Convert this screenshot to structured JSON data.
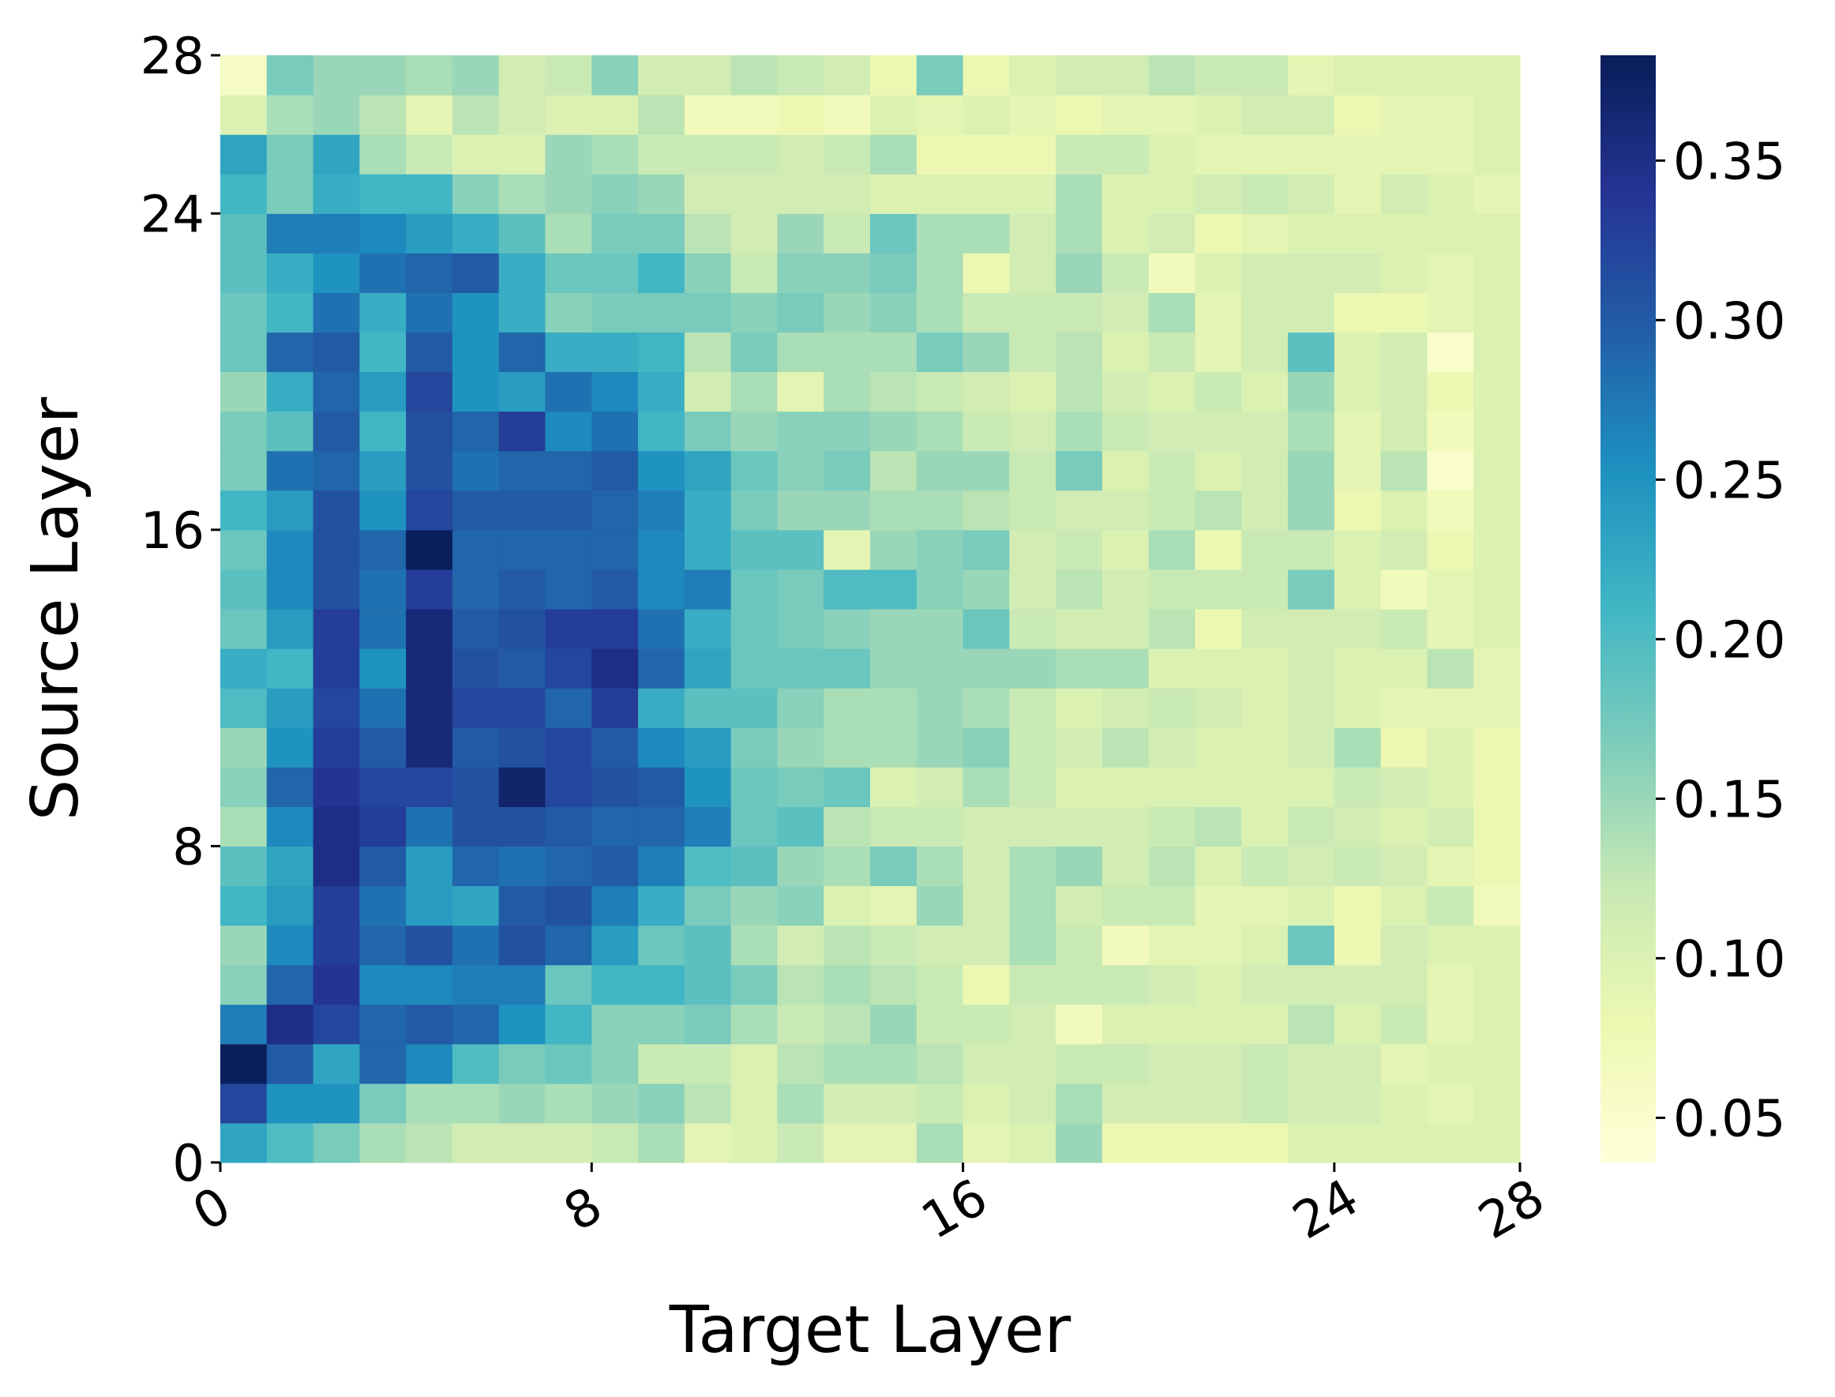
{
  "chart_data": {
    "type": "heatmap",
    "x_label": "Target Layer",
    "y_label": "Source Layer",
    "xlim": [
      0,
      28
    ],
    "xticks": [
      0,
      8,
      16,
      24,
      28
    ],
    "ylim": [
      0,
      28
    ],
    "yticks": [
      0,
      8,
      16,
      24,
      28
    ],
    "zlim": [
      0.036,
      0.383
    ],
    "zticks": [
      0.05,
      {
        "value": 0.1,
        "label": "0.10"
      },
      0.15,
      {
        "value": 0.2,
        "label": "0.20"
      },
      0.25,
      {
        "value": 0.3,
        "label": "0.30"
      },
      0.35
    ],
    "colormap": [
      "#ffffd9",
      "#edf8b1",
      "#c7e9b4",
      "#7fcdbb",
      "#41b6c4",
      "#1d91c0",
      "#225ea8",
      "#253494",
      "#081d58"
    ],
    "z": [
      [
        0.23,
        0.2,
        0.17,
        0.14,
        0.13,
        0.11,
        0.11,
        0.11,
        0.12,
        0.14,
        0.09,
        0.1,
        0.12,
        0.09,
        0.09,
        0.14,
        0.09,
        0.1,
        0.15,
        0.08,
        0.08,
        0.08,
        0.08,
        0.1,
        0.1,
        0.1,
        0.1,
        0.1
      ],
      [
        0.32,
        0.25,
        0.25,
        0.17,
        0.14,
        0.14,
        0.15,
        0.14,
        0.15,
        0.16,
        0.13,
        0.1,
        0.14,
        0.11,
        0.11,
        0.12,
        0.1,
        0.11,
        0.14,
        0.11,
        0.11,
        0.11,
        0.12,
        0.11,
        0.11,
        0.1,
        0.09,
        0.1
      ],
      [
        0.38,
        0.3,
        0.23,
        0.29,
        0.26,
        0.2,
        0.17,
        0.18,
        0.16,
        0.12,
        0.12,
        0.1,
        0.13,
        0.14,
        0.14,
        0.13,
        0.11,
        0.11,
        0.12,
        0.12,
        0.11,
        0.11,
        0.12,
        0.11,
        0.11,
        0.09,
        0.1,
        0.1
      ],
      [
        0.27,
        0.35,
        0.32,
        0.29,
        0.3,
        0.29,
        0.25,
        0.21,
        0.16,
        0.16,
        0.17,
        0.14,
        0.12,
        0.13,
        0.15,
        0.12,
        0.12,
        0.11,
        0.07,
        0.1,
        0.1,
        0.1,
        0.1,
        0.13,
        0.1,
        0.12,
        0.09,
        0.1
      ],
      [
        0.16,
        0.29,
        0.34,
        0.26,
        0.26,
        0.27,
        0.27,
        0.18,
        0.21,
        0.21,
        0.19,
        0.17,
        0.13,
        0.14,
        0.13,
        0.12,
        0.08,
        0.12,
        0.12,
        0.12,
        0.11,
        0.1,
        0.11,
        0.11,
        0.11,
        0.11,
        0.09,
        0.1
      ],
      [
        0.15,
        0.26,
        0.33,
        0.29,
        0.31,
        0.28,
        0.31,
        0.29,
        0.24,
        0.18,
        0.19,
        0.14,
        0.11,
        0.13,
        0.12,
        0.11,
        0.11,
        0.14,
        0.12,
        0.07,
        0.09,
        0.09,
        0.1,
        0.18,
        0.08,
        0.11,
        0.1,
        0.1
      ],
      [
        0.21,
        0.24,
        0.33,
        0.28,
        0.24,
        0.23,
        0.3,
        0.31,
        0.27,
        0.22,
        0.17,
        0.15,
        0.16,
        0.1,
        0.09,
        0.15,
        0.11,
        0.14,
        0.11,
        0.12,
        0.12,
        0.09,
        0.09,
        0.1,
        0.08,
        0.1,
        0.12,
        0.07
      ],
      [
        0.19,
        0.23,
        0.35,
        0.3,
        0.24,
        0.29,
        0.28,
        0.29,
        0.3,
        0.27,
        0.2,
        0.19,
        0.15,
        0.14,
        0.17,
        0.14,
        0.11,
        0.14,
        0.15,
        0.11,
        0.13,
        0.1,
        0.12,
        0.11,
        0.12,
        0.11,
        0.09,
        0.08
      ],
      [
        0.14,
        0.26,
        0.35,
        0.33,
        0.28,
        0.31,
        0.31,
        0.3,
        0.29,
        0.29,
        0.27,
        0.18,
        0.19,
        0.13,
        0.12,
        0.12,
        0.11,
        0.11,
        0.11,
        0.11,
        0.12,
        0.13,
        0.1,
        0.12,
        0.11,
        0.1,
        0.11,
        0.08
      ],
      [
        0.16,
        0.29,
        0.34,
        0.32,
        0.32,
        0.31,
        0.37,
        0.32,
        0.31,
        0.3,
        0.25,
        0.18,
        0.17,
        0.18,
        0.1,
        0.11,
        0.14,
        0.12,
        0.1,
        0.1,
        0.1,
        0.1,
        0.1,
        0.1,
        0.12,
        0.11,
        0.1,
        0.08
      ],
      [
        0.15,
        0.25,
        0.33,
        0.3,
        0.36,
        0.3,
        0.31,
        0.32,
        0.3,
        0.26,
        0.24,
        0.17,
        0.15,
        0.14,
        0.14,
        0.15,
        0.16,
        0.12,
        0.11,
        0.13,
        0.11,
        0.1,
        0.1,
        0.11,
        0.14,
        0.08,
        0.1,
        0.08
      ],
      [
        0.2,
        0.24,
        0.32,
        0.28,
        0.36,
        0.32,
        0.32,
        0.29,
        0.33,
        0.22,
        0.19,
        0.19,
        0.16,
        0.14,
        0.14,
        0.15,
        0.14,
        0.12,
        0.1,
        0.11,
        0.12,
        0.11,
        0.1,
        0.11,
        0.1,
        0.09,
        0.09,
        0.09
      ],
      [
        0.22,
        0.21,
        0.33,
        0.25,
        0.36,
        0.31,
        0.3,
        0.32,
        0.35,
        0.29,
        0.23,
        0.18,
        0.18,
        0.18,
        0.15,
        0.15,
        0.15,
        0.15,
        0.14,
        0.14,
        0.1,
        0.1,
        0.1,
        0.11,
        0.1,
        0.1,
        0.13,
        0.09
      ],
      [
        0.18,
        0.24,
        0.33,
        0.28,
        0.36,
        0.3,
        0.31,
        0.33,
        0.33,
        0.28,
        0.22,
        0.18,
        0.17,
        0.16,
        0.15,
        0.15,
        0.18,
        0.12,
        0.11,
        0.11,
        0.13,
        0.08,
        0.11,
        0.11,
        0.11,
        0.12,
        0.09,
        0.1
      ],
      [
        0.19,
        0.26,
        0.31,
        0.28,
        0.33,
        0.29,
        0.3,
        0.29,
        0.3,
        0.26,
        0.27,
        0.18,
        0.17,
        0.2,
        0.2,
        0.16,
        0.15,
        0.11,
        0.13,
        0.11,
        0.12,
        0.12,
        0.12,
        0.17,
        0.1,
        0.07,
        0.09,
        0.1
      ],
      [
        0.18,
        0.26,
        0.31,
        0.29,
        0.38,
        0.29,
        0.29,
        0.29,
        0.29,
        0.26,
        0.22,
        0.19,
        0.19,
        0.09,
        0.15,
        0.16,
        0.17,
        0.11,
        0.12,
        0.1,
        0.14,
        0.08,
        0.12,
        0.12,
        0.1,
        0.11,
        0.08,
        0.1
      ],
      [
        0.21,
        0.24,
        0.31,
        0.25,
        0.32,
        0.3,
        0.3,
        0.3,
        0.29,
        0.27,
        0.22,
        0.17,
        0.15,
        0.15,
        0.14,
        0.14,
        0.13,
        0.12,
        0.11,
        0.11,
        0.12,
        0.13,
        0.11,
        0.15,
        0.08,
        0.1,
        0.07,
        0.1
      ],
      [
        0.17,
        0.28,
        0.29,
        0.24,
        0.31,
        0.28,
        0.29,
        0.29,
        0.3,
        0.25,
        0.23,
        0.18,
        0.16,
        0.17,
        0.13,
        0.15,
        0.15,
        0.12,
        0.17,
        0.1,
        0.12,
        0.1,
        0.11,
        0.15,
        0.09,
        0.13,
        0.05,
        0.1
      ],
      [
        0.17,
        0.19,
        0.3,
        0.21,
        0.31,
        0.29,
        0.33,
        0.26,
        0.28,
        0.21,
        0.17,
        0.15,
        0.16,
        0.16,
        0.15,
        0.14,
        0.12,
        0.11,
        0.14,
        0.12,
        0.11,
        0.11,
        0.11,
        0.14,
        0.09,
        0.11,
        0.07,
        0.1
      ],
      [
        0.15,
        0.22,
        0.29,
        0.24,
        0.32,
        0.25,
        0.24,
        0.28,
        0.26,
        0.22,
        0.11,
        0.14,
        0.09,
        0.14,
        0.13,
        0.12,
        0.11,
        0.1,
        0.13,
        0.11,
        0.1,
        0.12,
        0.1,
        0.15,
        0.1,
        0.11,
        0.08,
        0.1
      ],
      [
        0.18,
        0.29,
        0.3,
        0.21,
        0.3,
        0.25,
        0.29,
        0.22,
        0.22,
        0.21,
        0.13,
        0.17,
        0.14,
        0.14,
        0.14,
        0.17,
        0.15,
        0.12,
        0.13,
        0.1,
        0.12,
        0.09,
        0.11,
        0.19,
        0.1,
        0.11,
        0.05,
        0.1
      ],
      [
        0.18,
        0.21,
        0.28,
        0.22,
        0.28,
        0.25,
        0.22,
        0.16,
        0.17,
        0.17,
        0.17,
        0.16,
        0.17,
        0.15,
        0.16,
        0.14,
        0.12,
        0.12,
        0.12,
        0.11,
        0.14,
        0.09,
        0.11,
        0.11,
        0.08,
        0.08,
        0.09,
        0.1
      ],
      [
        0.19,
        0.22,
        0.25,
        0.28,
        0.29,
        0.3,
        0.22,
        0.18,
        0.18,
        0.21,
        0.16,
        0.12,
        0.16,
        0.16,
        0.17,
        0.14,
        0.08,
        0.11,
        0.15,
        0.12,
        0.07,
        0.1,
        0.11,
        0.11,
        0.11,
        0.1,
        0.09,
        0.1
      ],
      [
        0.19,
        0.27,
        0.27,
        0.26,
        0.24,
        0.22,
        0.19,
        0.14,
        0.17,
        0.17,
        0.13,
        0.11,
        0.15,
        0.12,
        0.18,
        0.14,
        0.14,
        0.11,
        0.14,
        0.1,
        0.11,
        0.08,
        0.09,
        0.1,
        0.1,
        0.1,
        0.1,
        0.1
      ],
      [
        0.21,
        0.17,
        0.22,
        0.21,
        0.21,
        0.16,
        0.14,
        0.15,
        0.16,
        0.15,
        0.11,
        0.11,
        0.11,
        0.11,
        0.1,
        0.1,
        0.1,
        0.1,
        0.14,
        0.1,
        0.1,
        0.11,
        0.12,
        0.11,
        0.09,
        0.11,
        0.1,
        0.09
      ],
      [
        0.23,
        0.17,
        0.23,
        0.14,
        0.12,
        0.1,
        0.1,
        0.15,
        0.14,
        0.12,
        0.12,
        0.12,
        0.11,
        0.12,
        0.14,
        0.08,
        0.08,
        0.08,
        0.12,
        0.12,
        0.1,
        0.09,
        0.09,
        0.09,
        0.09,
        0.09,
        0.09,
        0.1
      ],
      [
        0.1,
        0.14,
        0.15,
        0.13,
        0.09,
        0.13,
        0.11,
        0.1,
        0.1,
        0.13,
        0.07,
        0.07,
        0.08,
        0.07,
        0.1,
        0.09,
        0.1,
        0.09,
        0.08,
        0.09,
        0.09,
        0.1,
        0.11,
        0.11,
        0.08,
        0.09,
        0.09,
        0.1
      ],
      [
        0.06,
        0.17,
        0.15,
        0.15,
        0.14,
        0.15,
        0.11,
        0.12,
        0.16,
        0.11,
        0.11,
        0.13,
        0.12,
        0.11,
        0.08,
        0.17,
        0.08,
        0.1,
        0.11,
        0.11,
        0.13,
        0.12,
        0.12,
        0.09,
        0.1,
        0.1,
        0.1,
        0.1
      ]
    ]
  }
}
